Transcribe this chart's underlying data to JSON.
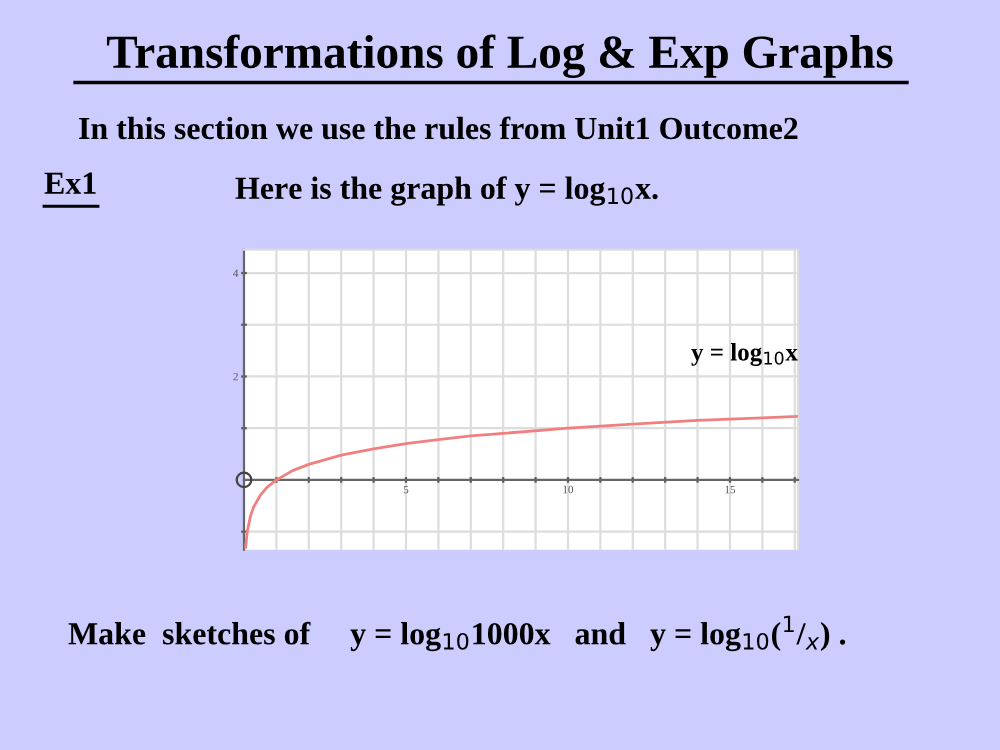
{
  "chart_data": {
    "type": "line",
    "title": "Transformations of Log & Exp Graphs",
    "subtitle": "In this section we use the rules from Unit1 Outcome2",
    "annotations": [
      "Ex1",
      "Here is the graph of y = log$_{10}$x.",
      "Make  sketches of     y = log$_{10}$1000x   and   y = log$_{10}$($^{1}$/$_{x}$) ."
    ],
    "series": [
      {
        "name": "y = log$_{10}$x",
        "color": "#f08080",
        "x": [
          0.05,
          0.1,
          0.2,
          0.3,
          0.5,
          0.7,
          1,
          1.5,
          2,
          3,
          4,
          5,
          6,
          7,
          8,
          10,
          12,
          14,
          16,
          17.1
        ],
        "values": [
          -1.3,
          -1,
          -0.7,
          -0.52,
          -0.3,
          -0.15,
          0,
          0.18,
          0.3,
          0.48,
          0.6,
          0.7,
          0.78,
          0.85,
          0.9,
          1,
          1.08,
          1.15,
          1.2,
          1.23
        ]
      }
    ],
    "xlim": [
      0,
      17.1
    ],
    "ylim": [
      -1.35,
      4.45
    ],
    "xticks": [
      {
        "value": 1,
        "label": null
      },
      {
        "value": 2,
        "label": null
      },
      {
        "value": 3,
        "label": null
      },
      {
        "value": 4,
        "label": null
      },
      5,
      {
        "value": 6,
        "label": null
      },
      {
        "value": 7,
        "label": null
      },
      {
        "value": 8,
        "label": null
      },
      {
        "value": 9,
        "label": null
      },
      10,
      {
        "value": 11,
        "label": null
      },
      {
        "value": 12,
        "label": null
      },
      {
        "value": 13,
        "label": null
      },
      {
        "value": 14,
        "label": null
      },
      15,
      {
        "value": 16,
        "label": null
      },
      {
        "value": 17,
        "label": null
      }
    ],
    "yticks": [
      {
        "value": -1,
        "label": null
      },
      {
        "value": 1,
        "label": null
      },
      2,
      {
        "value": 3,
        "label": null
      },
      4
    ],
    "grid": true,
    "marker": "none",
    "line_style": "solid"
  }
}
